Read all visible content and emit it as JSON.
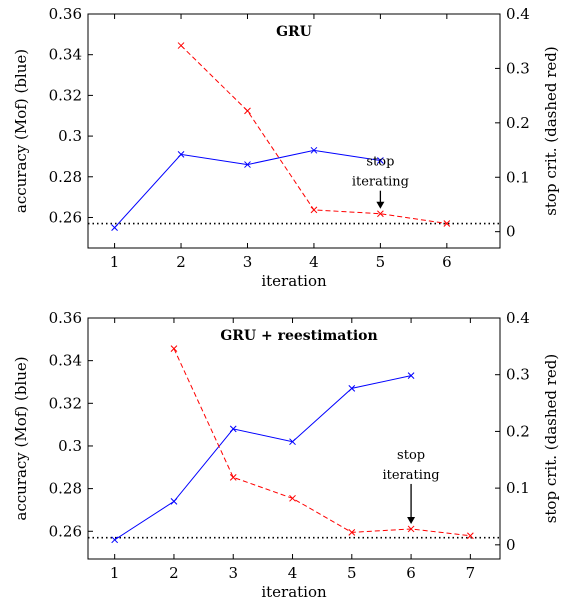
{
  "chart_data": [
    {
      "type": "line",
      "title": "GRU",
      "xlabel": "iteration",
      "ylabel_left": "accuracy (Mof) (blue)",
      "ylabel_right": "stop crit. (dashed red)",
      "x_ticks": [
        1,
        2,
        3,
        4,
        5,
        6
      ],
      "x_tick_labels": [
        "1",
        "2",
        "3",
        "4",
        "5",
        "6"
      ],
      "xlim": [
        0.6,
        6.8
      ],
      "ylim_left": [
        0.245,
        0.36
      ],
      "ylim_right": [
        -0.03,
        0.4
      ],
      "y_left_ticks": [
        0.26,
        0.28,
        0.3,
        0.32,
        0.34,
        0.36
      ],
      "y_left_tick_labels": [
        "0.26",
        "0.28",
        "0.3",
        "0.32",
        "0.34",
        "0.36"
      ],
      "y_right_ticks": [
        0,
        0.1,
        0.2,
        0.3,
        0.4
      ],
      "y_right_tick_labels": [
        "0",
        "0.1",
        "0.2",
        "0.3",
        "0.4"
      ],
      "grid": false,
      "series": [
        {
          "axis": "left",
          "color": "#0000ff",
          "style": "solid",
          "marker": "x",
          "x": [
            1,
            2,
            3,
            4,
            5
          ],
          "y": [
            0.255,
            0.291,
            0.286,
            0.293,
            0.288
          ]
        },
        {
          "axis": "right",
          "color": "#ff0000",
          "style": "dashed",
          "marker": "x",
          "x": [
            2,
            3,
            4,
            5,
            6
          ],
          "y": [
            0.342,
            0.222,
            0.04,
            0.033,
            0.015
          ]
        }
      ],
      "reference_line": {
        "axis": "left",
        "y": 0.257,
        "style": "dotted",
        "color": "#000000"
      },
      "annotation": {
        "lines": [
          "stop",
          "iterating"
        ],
        "x": 5
      }
    },
    {
      "type": "line",
      "title": "GRU + reestimation",
      "xlabel": "iteration",
      "ylabel_left": "accuracy (Mof) (blue)",
      "ylabel_right": "stop crit. (dashed red)",
      "x_ticks": [
        1,
        2,
        3,
        4,
        5,
        6,
        7
      ],
      "x_tick_labels": [
        "1",
        "2",
        "3",
        "4",
        "5",
        "6",
        "7"
      ],
      "xlim": [
        0.55,
        7.5
      ],
      "ylim_left": [
        0.247,
        0.36
      ],
      "ylim_right": [
        -0.025,
        0.4
      ],
      "y_left_ticks": [
        0.26,
        0.28,
        0.3,
        0.32,
        0.34,
        0.36
      ],
      "y_left_tick_labels": [
        "0.26",
        "0.28",
        "0.3",
        "0.32",
        "0.34",
        "0.36"
      ],
      "y_right_ticks": [
        0,
        0.1,
        0.2,
        0.3,
        0.4
      ],
      "y_right_tick_labels": [
        "0",
        "0.1",
        "0.2",
        "0.3",
        "0.4"
      ],
      "grid": false,
      "series": [
        {
          "axis": "left",
          "color": "#0000ff",
          "style": "solid",
          "marker": "x",
          "x": [
            1,
            2,
            3,
            4,
            5,
            6,
            7
          ],
          "y": [
            0.256,
            0.274,
            0.308,
            0.302,
            0.327,
            0.333,
            null
          ]
        },
        {
          "axis": "right",
          "color": "#ff0000",
          "style": "dashed",
          "marker": "x",
          "x": [
            2,
            3,
            4,
            5,
            6,
            7
          ],
          "y": [
            0.346,
            0.119,
            0.082,
            0.022,
            0.028,
            0.016
          ]
        }
      ],
      "reference_line": {
        "axis": "left",
        "y": 0.257,
        "style": "dotted",
        "color": "#000000"
      },
      "annotation": {
        "lines": [
          "stop",
          "iterating"
        ],
        "x": 6
      }
    }
  ]
}
